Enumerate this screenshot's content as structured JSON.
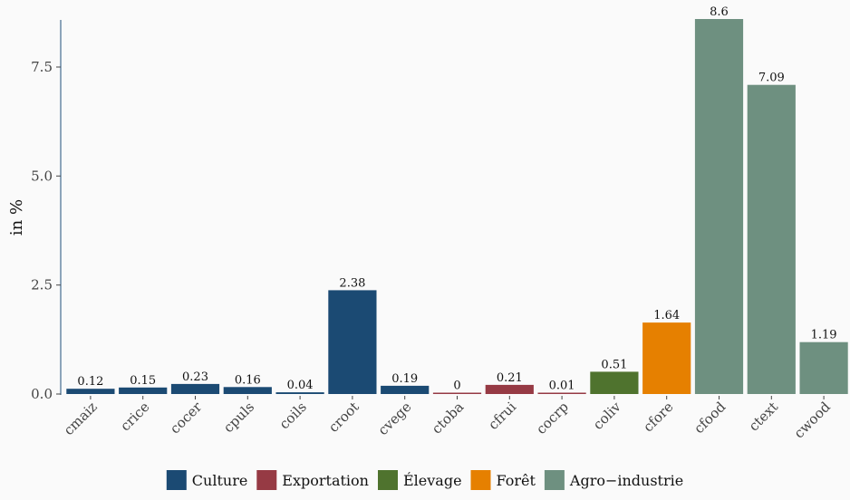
{
  "chart_data": {
    "type": "bar",
    "title": "",
    "xlabel": "",
    "ylabel": "in %",
    "ylim": [
      0,
      8.6
    ],
    "yticks": [
      0.0,
      2.5,
      5.0,
      7.5
    ],
    "ytick_labels": [
      "0.0",
      "2.5",
      "5.0",
      "7.5"
    ],
    "grid": false,
    "legend_position": "bottom",
    "categories": [
      "cmaiz",
      "crice",
      "cocer",
      "cpuls",
      "coils",
      "croot",
      "cvege",
      "ctoba",
      "cfrui",
      "cocrp",
      "coliv",
      "cfore",
      "cfood",
      "ctext",
      "cwood"
    ],
    "values": [
      0.12,
      0.15,
      0.23,
      0.16,
      0.04,
      2.38,
      0.19,
      0,
      0.21,
      0.01,
      0.51,
      1.64,
      8.6,
      7.09,
      1.19
    ],
    "value_labels": [
      "0.12",
      "0.15",
      "0.23",
      "0.16",
      "0.04",
      "2.38",
      "0.19",
      "0",
      "0.21",
      "0.01",
      "0.51",
      "1.64",
      "8.6",
      "7.09",
      "1.19"
    ],
    "groups": [
      "Culture",
      "Culture",
      "Culture",
      "Culture",
      "Culture",
      "Culture",
      "Culture",
      "Exportation",
      "Exportation",
      "Exportation",
      "Élevage",
      "Forêt",
      "Agro−industrie",
      "Agro−industrie",
      "Agro−industrie"
    ],
    "legend": [
      {
        "name": "Culture",
        "color": "#1b4a73"
      },
      {
        "name": "Exportation",
        "color": "#963a44"
      },
      {
        "name": "Élevage",
        "color": "#4f732e"
      },
      {
        "name": "Forêt",
        "color": "#e68000"
      },
      {
        "name": "Agro−industrie",
        "color": "#6e9080"
      }
    ]
  }
}
